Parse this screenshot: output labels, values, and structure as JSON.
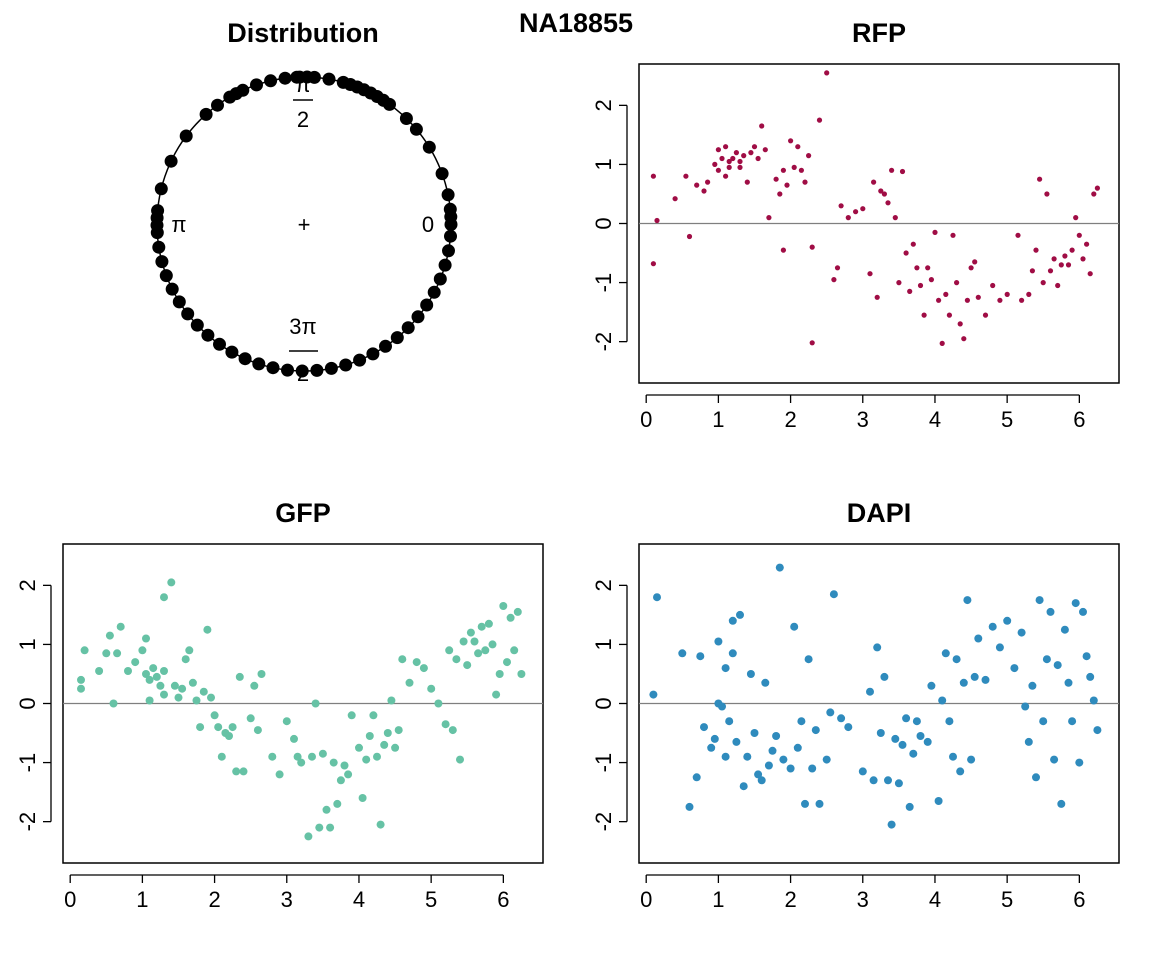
{
  "figure": {
    "main_title": "NA18855",
    "colors": {
      "rfp": "#a00d45",
      "gfp": "#66c2a5",
      "dapi": "#2f8bbd",
      "ink": "#000000",
      "zero_line": "#7f7f7f"
    }
  },
  "chart_data": [
    {
      "type": "circular",
      "title": "Distribution",
      "labels": {
        "right": "0",
        "top_num": "π",
        "top_den": "2",
        "left": "π",
        "bottom_num": "3π",
        "bottom_den": "2",
        "center": "+"
      },
      "angles": [
        0.05,
        0.1,
        0.2,
        0.35,
        0.55,
        0.7,
        0.8,
        0.95,
        1.0,
        1.05,
        1.1,
        1.15,
        1.2,
        1.25,
        1.3,
        1.4,
        1.5,
        1.55,
        1.6,
        1.62,
        1.7,
        1.8,
        1.9,
        2.0,
        2.05,
        2.1,
        2.2,
        2.3,
        2.5,
        2.7,
        2.9,
        3.05,
        3.1,
        3.15,
        3.2,
        3.3,
        3.4,
        3.5,
        3.6,
        3.7,
        3.8,
        3.9,
        4.0,
        4.1,
        4.2,
        4.3,
        4.4,
        4.5,
        4.6,
        4.7,
        4.8,
        4.9,
        5.0,
        5.1,
        5.2,
        5.3,
        5.4,
        5.5,
        5.6,
        5.7,
        5.8,
        5.9,
        6.0,
        6.1,
        6.2,
        6.28
      ]
    },
    {
      "type": "scatter",
      "title": "RFP",
      "series_color": "rfp",
      "xlim": [
        0,
        6.3
      ],
      "ylim": [
        -2.7,
        2.7
      ],
      "xticks": [
        0,
        1,
        2,
        3,
        4,
        5,
        6
      ],
      "yticks": [
        -2,
        -1,
        0,
        1,
        2
      ],
      "hline": 0,
      "points": [
        [
          0.1,
          0.8
        ],
        [
          0.15,
          0.05
        ],
        [
          0.1,
          -0.68
        ],
        [
          0.4,
          0.42
        ],
        [
          0.55,
          0.8
        ],
        [
          0.6,
          -0.22
        ],
        [
          0.7,
          0.65
        ],
        [
          0.8,
          0.55
        ],
        [
          0.85,
          0.7
        ],
        [
          0.95,
          1.0
        ],
        [
          1.0,
          1.25
        ],
        [
          1.0,
          0.9
        ],
        [
          1.05,
          1.1
        ],
        [
          1.1,
          0.8
        ],
        [
          1.1,
          1.3
        ],
        [
          1.15,
          1.05
        ],
        [
          1.15,
          0.95
        ],
        [
          1.2,
          1.1
        ],
        [
          1.25,
          1.2
        ],
        [
          1.3,
          0.95
        ],
        [
          1.3,
          1.05
        ],
        [
          1.35,
          1.15
        ],
        [
          1.4,
          0.7
        ],
        [
          1.45,
          1.2
        ],
        [
          1.5,
          1.3
        ],
        [
          1.55,
          1.1
        ],
        [
          1.6,
          1.65
        ],
        [
          1.65,
          1.25
        ],
        [
          1.7,
          0.1
        ],
        [
          1.8,
          0.75
        ],
        [
          1.85,
          0.5
        ],
        [
          1.9,
          -0.45
        ],
        [
          1.9,
          0.9
        ],
        [
          1.95,
          0.65
        ],
        [
          2.0,
          1.4
        ],
        [
          2.05,
          0.95
        ],
        [
          2.1,
          1.3
        ],
        [
          2.15,
          0.9
        ],
        [
          2.2,
          0.7
        ],
        [
          2.25,
          1.15
        ],
        [
          2.3,
          -2.02
        ],
        [
          2.3,
          -0.4
        ],
        [
          2.4,
          1.75
        ],
        [
          2.5,
          2.55
        ],
        [
          2.6,
          -0.95
        ],
        [
          2.65,
          -0.75
        ],
        [
          2.7,
          0.3
        ],
        [
          2.8,
          0.1
        ],
        [
          2.9,
          0.2
        ],
        [
          3.0,
          0.25
        ],
        [
          3.1,
          -0.85
        ],
        [
          3.15,
          0.7
        ],
        [
          3.2,
          -1.25
        ],
        [
          3.25,
          0.55
        ],
        [
          3.3,
          0.5
        ],
        [
          3.35,
          0.35
        ],
        [
          3.4,
          0.9
        ],
        [
          3.45,
          0.1
        ],
        [
          3.5,
          -1.0
        ],
        [
          3.55,
          0.88
        ],
        [
          3.6,
          -0.5
        ],
        [
          3.65,
          -1.15
        ],
        [
          3.7,
          -0.35
        ],
        [
          3.75,
          -0.75
        ],
        [
          3.8,
          -1.05
        ],
        [
          3.85,
          -1.55
        ],
        [
          3.9,
          -0.75
        ],
        [
          3.95,
          -0.95
        ],
        [
          4.0,
          -0.15
        ],
        [
          4.05,
          -1.3
        ],
        [
          4.1,
          -2.03
        ],
        [
          4.15,
          -1.2
        ],
        [
          4.2,
          -1.55
        ],
        [
          4.25,
          -0.2
        ],
        [
          4.3,
          -1.0
        ],
        [
          4.35,
          -1.7
        ],
        [
          4.4,
          -1.95
        ],
        [
          4.45,
          -1.3
        ],
        [
          4.5,
          -0.75
        ],
        [
          4.55,
          -0.65
        ],
        [
          4.6,
          -1.25
        ],
        [
          4.7,
          -1.55
        ],
        [
          4.8,
          -1.05
        ],
        [
          4.9,
          -1.3
        ],
        [
          5.0,
          -1.2
        ],
        [
          5.15,
          -0.2
        ],
        [
          5.2,
          -1.3
        ],
        [
          5.3,
          -1.2
        ],
        [
          5.35,
          -0.8
        ],
        [
          5.4,
          -0.45
        ],
        [
          5.45,
          0.75
        ],
        [
          5.5,
          -1.0
        ],
        [
          5.55,
          0.5
        ],
        [
          5.6,
          -0.8
        ],
        [
          5.65,
          -0.6
        ],
        [
          5.7,
          -1.05
        ],
        [
          5.75,
          -0.7
        ],
        [
          5.8,
          -0.55
        ],
        [
          5.85,
          -0.7
        ],
        [
          5.9,
          -0.45
        ],
        [
          5.95,
          0.1
        ],
        [
          6.0,
          -0.2
        ],
        [
          6.05,
          -0.6
        ],
        [
          6.1,
          -0.35
        ],
        [
          6.15,
          -0.85
        ],
        [
          6.2,
          0.5
        ],
        [
          6.25,
          0.6
        ]
      ]
    },
    {
      "type": "scatter",
      "title": "GFP",
      "series_color": "gfp",
      "xlim": [
        0,
        6.3
      ],
      "ylim": [
        -2.7,
        2.7
      ],
      "xticks": [
        0,
        1,
        2,
        3,
        4,
        5,
        6
      ],
      "yticks": [
        -2,
        -1,
        0,
        1,
        2
      ],
      "hline": 0,
      "points": [
        [
          0.15,
          0.4
        ],
        [
          0.15,
          0.25
        ],
        [
          0.2,
          0.9
        ],
        [
          0.4,
          0.55
        ],
        [
          0.5,
          0.85
        ],
        [
          0.55,
          1.15
        ],
        [
          0.6,
          0.0
        ],
        [
          0.65,
          0.85
        ],
        [
          0.7,
          1.3
        ],
        [
          0.8,
          0.55
        ],
        [
          0.9,
          0.7
        ],
        [
          1.0,
          0.9
        ],
        [
          1.05,
          0.5
        ],
        [
          1.05,
          1.1
        ],
        [
          1.1,
          0.4
        ],
        [
          1.1,
          0.05
        ],
        [
          1.15,
          0.6
        ],
        [
          1.2,
          0.45
        ],
        [
          1.25,
          0.3
        ],
        [
          1.3,
          0.15
        ],
        [
          1.3,
          0.55
        ],
        [
          1.3,
          1.8
        ],
        [
          1.4,
          2.05
        ],
        [
          1.45,
          0.3
        ],
        [
          1.5,
          0.1
        ],
        [
          1.55,
          0.25
        ],
        [
          1.6,
          0.75
        ],
        [
          1.65,
          0.9
        ],
        [
          1.7,
          0.35
        ],
        [
          1.75,
          0.05
        ],
        [
          1.8,
          -0.4
        ],
        [
          1.85,
          0.2
        ],
        [
          1.9,
          1.25
        ],
        [
          1.95,
          0.1
        ],
        [
          2.0,
          -0.2
        ],
        [
          2.05,
          -0.4
        ],
        [
          2.1,
          -0.9
        ],
        [
          2.15,
          -0.5
        ],
        [
          2.2,
          -0.55
        ],
        [
          2.25,
          -0.4
        ],
        [
          2.3,
          -1.15
        ],
        [
          2.35,
          0.45
        ],
        [
          2.4,
          -1.15
        ],
        [
          2.5,
          -0.25
        ],
        [
          2.55,
          0.3
        ],
        [
          2.6,
          -0.45
        ],
        [
          2.65,
          0.5
        ],
        [
          2.8,
          -0.9
        ],
        [
          2.9,
          -1.2
        ],
        [
          3.0,
          -0.3
        ],
        [
          3.1,
          -0.6
        ],
        [
          3.15,
          -0.9
        ],
        [
          3.2,
          -1.0
        ],
        [
          3.3,
          -2.25
        ],
        [
          3.35,
          -0.9
        ],
        [
          3.4,
          0.0
        ],
        [
          3.45,
          -2.1
        ],
        [
          3.5,
          -0.85
        ],
        [
          3.55,
          -1.8
        ],
        [
          3.6,
          -2.1
        ],
        [
          3.65,
          -1.0
        ],
        [
          3.7,
          -1.7
        ],
        [
          3.75,
          -1.3
        ],
        [
          3.8,
          -1.05
        ],
        [
          3.85,
          -1.2
        ],
        [
          3.9,
          -0.2
        ],
        [
          4.0,
          -0.75
        ],
        [
          4.05,
          -1.6
        ],
        [
          4.1,
          -0.95
        ],
        [
          4.15,
          -0.55
        ],
        [
          4.2,
          -0.2
        ],
        [
          4.25,
          -0.9
        ],
        [
          4.3,
          -2.05
        ],
        [
          4.35,
          -0.7
        ],
        [
          4.4,
          -0.5
        ],
        [
          4.45,
          0.05
        ],
        [
          4.5,
          -0.75
        ],
        [
          4.55,
          -0.45
        ],
        [
          4.6,
          0.75
        ],
        [
          4.7,
          0.35
        ],
        [
          4.8,
          0.7
        ],
        [
          4.9,
          0.6
        ],
        [
          5.0,
          0.25
        ],
        [
          5.1,
          0.0
        ],
        [
          5.2,
          -0.35
        ],
        [
          5.25,
          0.9
        ],
        [
          5.3,
          -0.45
        ],
        [
          5.35,
          0.75
        ],
        [
          5.4,
          -0.95
        ],
        [
          5.45,
          1.05
        ],
        [
          5.5,
          0.65
        ],
        [
          5.55,
          1.2
        ],
        [
          5.6,
          1.05
        ],
        [
          5.65,
          0.85
        ],
        [
          5.7,
          1.3
        ],
        [
          5.75,
          0.9
        ],
        [
          5.8,
          1.35
        ],
        [
          5.85,
          1.0
        ],
        [
          5.9,
          0.15
        ],
        [
          5.95,
          0.5
        ],
        [
          6.0,
          1.65
        ],
        [
          6.05,
          0.7
        ],
        [
          6.1,
          1.45
        ],
        [
          6.15,
          0.9
        ],
        [
          6.2,
          1.55
        ],
        [
          6.25,
          0.5
        ]
      ]
    },
    {
      "type": "scatter",
      "title": "DAPI",
      "series_color": "dapi",
      "xlim": [
        0,
        6.3
      ],
      "ylim": [
        -2.7,
        2.7
      ],
      "xticks": [
        0,
        1,
        2,
        3,
        4,
        5,
        6
      ],
      "yticks": [
        -2,
        -1,
        0,
        1,
        2
      ],
      "hline": 0,
      "points": [
        [
          0.1,
          0.15
        ],
        [
          0.15,
          1.8
        ],
        [
          0.5,
          0.85
        ],
        [
          0.6,
          -1.75
        ],
        [
          0.7,
          -1.25
        ],
        [
          0.75,
          0.8
        ],
        [
          0.8,
          -0.4
        ],
        [
          0.9,
          -0.75
        ],
        [
          0.95,
          -0.6
        ],
        [
          1.0,
          0.0
        ],
        [
          1.0,
          1.05
        ],
        [
          1.05,
          -0.05
        ],
        [
          1.1,
          0.6
        ],
        [
          1.1,
          -0.9
        ],
        [
          1.15,
          -0.3
        ],
        [
          1.2,
          0.85
        ],
        [
          1.2,
          1.4
        ],
        [
          1.25,
          -0.65
        ],
        [
          1.3,
          1.5
        ],
        [
          1.35,
          -1.4
        ],
        [
          1.4,
          -0.9
        ],
        [
          1.45,
          0.5
        ],
        [
          1.5,
          -0.5
        ],
        [
          1.55,
          -1.2
        ],
        [
          1.6,
          -1.3
        ],
        [
          1.65,
          0.35
        ],
        [
          1.7,
          -1.05
        ],
        [
          1.75,
          -0.8
        ],
        [
          1.8,
          -0.55
        ],
        [
          1.85,
          2.3
        ],
        [
          1.9,
          -0.95
        ],
        [
          2.0,
          -1.1
        ],
        [
          2.05,
          1.3
        ],
        [
          2.1,
          -0.75
        ],
        [
          2.15,
          -0.3
        ],
        [
          2.2,
          -1.7
        ],
        [
          2.25,
          0.75
        ],
        [
          2.3,
          -1.1
        ],
        [
          2.35,
          -0.45
        ],
        [
          2.4,
          -1.7
        ],
        [
          2.5,
          -0.95
        ],
        [
          2.55,
          -0.15
        ],
        [
          2.6,
          1.85
        ],
        [
          2.7,
          -0.25
        ],
        [
          2.8,
          -0.4
        ],
        [
          3.0,
          -1.15
        ],
        [
          3.1,
          0.2
        ],
        [
          3.15,
          -1.3
        ],
        [
          3.2,
          0.95
        ],
        [
          3.25,
          -0.5
        ],
        [
          3.3,
          0.45
        ],
        [
          3.35,
          -1.3
        ],
        [
          3.4,
          -2.05
        ],
        [
          3.45,
          -0.6
        ],
        [
          3.5,
          -1.35
        ],
        [
          3.55,
          -0.7
        ],
        [
          3.6,
          -0.25
        ],
        [
          3.65,
          -1.75
        ],
        [
          3.7,
          -0.85
        ],
        [
          3.75,
          -0.3
        ],
        [
          3.8,
          -0.55
        ],
        [
          3.9,
          -0.65
        ],
        [
          3.95,
          0.3
        ],
        [
          4.05,
          -1.65
        ],
        [
          4.1,
          0.05
        ],
        [
          4.15,
          0.85
        ],
        [
          4.2,
          -0.3
        ],
        [
          4.25,
          -0.9
        ],
        [
          4.3,
          0.75
        ],
        [
          4.35,
          -1.15
        ],
        [
          4.4,
          0.35
        ],
        [
          4.45,
          1.75
        ],
        [
          4.5,
          -0.95
        ],
        [
          4.55,
          0.45
        ],
        [
          4.6,
          1.1
        ],
        [
          4.7,
          0.4
        ],
        [
          4.8,
          1.3
        ],
        [
          4.9,
          0.95
        ],
        [
          5.0,
          1.4
        ],
        [
          5.1,
          0.6
        ],
        [
          5.2,
          1.2
        ],
        [
          5.25,
          -0.05
        ],
        [
          5.3,
          -0.65
        ],
        [
          5.35,
          0.3
        ],
        [
          5.4,
          -1.25
        ],
        [
          5.45,
          1.75
        ],
        [
          5.5,
          -0.3
        ],
        [
          5.55,
          0.75
        ],
        [
          5.6,
          1.55
        ],
        [
          5.65,
          -0.95
        ],
        [
          5.7,
          0.65
        ],
        [
          5.75,
          -1.7
        ],
        [
          5.8,
          1.25
        ],
        [
          5.85,
          0.35
        ],
        [
          5.9,
          -0.3
        ],
        [
          5.95,
          1.7
        ],
        [
          6.0,
          -1.0
        ],
        [
          6.05,
          1.55
        ],
        [
          6.1,
          0.8
        ],
        [
          6.15,
          0.45
        ],
        [
          6.2,
          0.05
        ],
        [
          6.25,
          -0.45
        ]
      ]
    }
  ]
}
